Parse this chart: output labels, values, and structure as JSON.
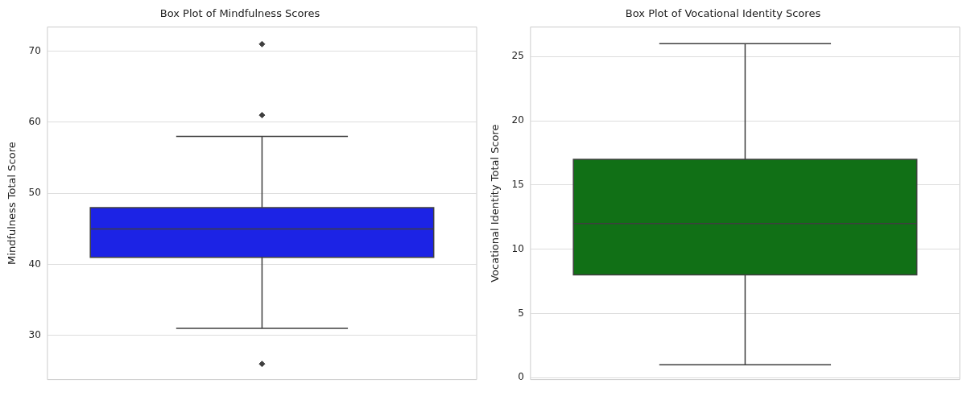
{
  "chart_data": [
    {
      "type": "box",
      "title": "Box Plot of Mindfulness Scores",
      "ylabel": "Mindfulness Total Score",
      "categories": [
        null
      ],
      "color": "#1c23e5",
      "boxes": [
        {
          "low": 31,
          "q1": 41,
          "median": 45,
          "q3": 48,
          "high": 58,
          "outliers": [
            26,
            61,
            71
          ]
        }
      ],
      "ylim": [
        23.8,
        73.4
      ],
      "yticks": [
        30,
        40,
        50,
        60,
        70
      ],
      "grid": "y"
    },
    {
      "type": "box",
      "title": "Box Plot of Vocational Identity Scores",
      "ylabel": "Vocational Identity Total Score",
      "categories": [
        null
      ],
      "color": "#117016",
      "boxes": [
        {
          "low": 1,
          "q1": 8,
          "median": 12,
          "q3": 17,
          "high": 26
        }
      ],
      "ylim": [
        -0.15,
        27.3
      ],
      "yticks": [
        0,
        5,
        10,
        15,
        20,
        25
      ],
      "grid": "y"
    }
  ]
}
